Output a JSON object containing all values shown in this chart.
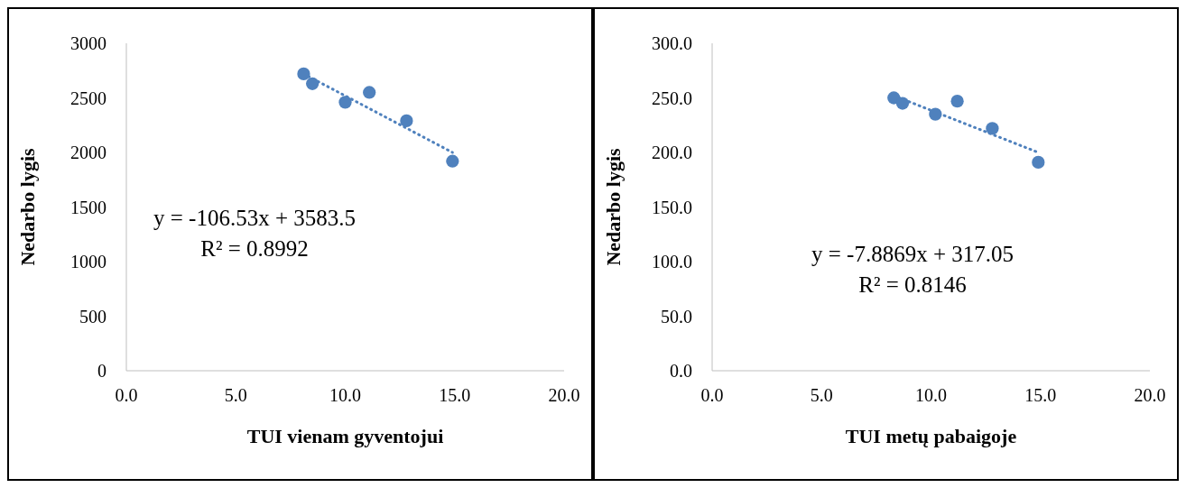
{
  "chart_data": [
    {
      "type": "scatter",
      "xlabel": "TUI vienam gyventojui",
      "ylabel": "Nedarbo lygis",
      "marker": "circle",
      "grid": false,
      "xlim": [
        0,
        20
      ],
      "xticks": [
        {
          "value": 0,
          "label": "0.0"
        },
        {
          "value": 5,
          "label": "5.0"
        },
        {
          "value": 10,
          "label": "10.0"
        },
        {
          "value": 15,
          "label": "15.0"
        },
        {
          "value": 20,
          "label": "20.0"
        }
      ],
      "ylim": [
        0,
        3000
      ],
      "yticks": [
        0,
        500,
        1000,
        1500,
        2000,
        2500,
        3000
      ],
      "series": [
        {
          "color": "#4f81bd",
          "x": [
            8.1,
            8.5,
            10.0,
            11.1,
            12.8,
            14.9
          ],
          "values": [
            2720,
            2630,
            2460,
            2550,
            2290,
            1920
          ]
        },
        {
          "type": "line",
          "color": "#4f81bd",
          "line_style": "dotted",
          "marker": "none",
          "x": [
            8.1,
            14.9
          ],
          "values": [
            2720,
            2000
          ]
        }
      ],
      "annotations": [
        "y = -106.53x + 3583.5",
        "R² = 0.8992"
      ]
    },
    {
      "type": "scatter",
      "xlabel": "TUI metų pabaigoje",
      "ylabel": "Nedarbo lygis",
      "marker": "circle",
      "grid": false,
      "xlim": [
        0,
        20
      ],
      "xticks": [
        {
          "value": 0,
          "label": "0.0"
        },
        {
          "value": 5,
          "label": "5.0"
        },
        {
          "value": 10,
          "label": "10.0"
        },
        {
          "value": 15,
          "label": "15.0"
        },
        {
          "value": 20,
          "label": "20.0"
        }
      ],
      "ylim": [
        0,
        300
      ],
      "yticks": [
        {
          "value": 0,
          "label": "0.0"
        },
        {
          "value": 50,
          "label": "50.0"
        },
        {
          "value": 100,
          "label": "100.0"
        },
        {
          "value": 150,
          "label": "150.0"
        },
        {
          "value": 200,
          "label": "200.0"
        },
        {
          "value": 250,
          "label": "250.0"
        },
        {
          "value": 300,
          "label": "300.0"
        }
      ],
      "series": [
        {
          "color": "#4f81bd",
          "x": [
            8.3,
            8.7,
            10.2,
            11.2,
            12.8,
            14.9
          ],
          "values": [
            250,
            245,
            235,
            247,
            222,
            191
          ]
        },
        {
          "type": "line",
          "color": "#4f81bd",
          "line_style": "dotted",
          "marker": "none",
          "x": [
            8.3,
            14.9
          ],
          "values": [
            252,
            200
          ]
        }
      ],
      "annotations": [
        "y = -7.8869x + 317.05",
        "R² = 0.8146"
      ]
    }
  ]
}
